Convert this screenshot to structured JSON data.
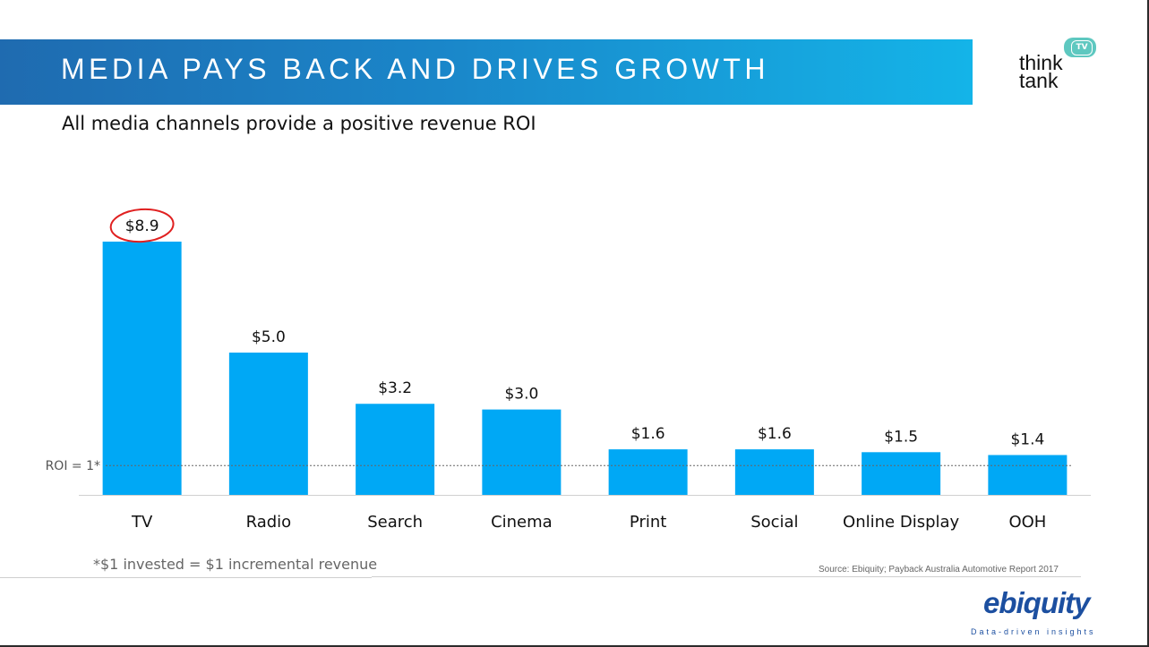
{
  "header": {
    "title": "MEDIA PAYS BACK AND DRIVES GROWTH"
  },
  "logo_thinktv": {
    "line1": "think",
    "line2": "tank",
    "bubble": "TV"
  },
  "chart_data": {
    "type": "bar",
    "title": "All media channels provide a positive revenue ROI",
    "categories": [
      "TV",
      "Radio",
      "Search",
      "Cinema",
      "Print",
      "Social",
      "Online Display",
      "OOH"
    ],
    "values": [
      8.9,
      5.0,
      3.2,
      3.0,
      1.6,
      1.6,
      1.5,
      1.4
    ],
    "value_labels": [
      "$8.9",
      "$5.0",
      "$3.2",
      "$3.0",
      "$1.6",
      "$1.6",
      "$1.5",
      "$1.4"
    ],
    "xlabel": "",
    "ylabel": "",
    "ylim": [
      0,
      8.9
    ],
    "bar_color": "#00a8f5",
    "highlight_index": 0,
    "highlight_color": "#e02020",
    "reference_line": {
      "value": 1,
      "label": "ROI = 1*"
    },
    "grid": false,
    "legend": "none"
  },
  "footnote": "*$1 invested = $1 incremental revenue",
  "source": "Source: Ebiquity; Payback Australia Automotive Report 2017",
  "logo_ebiquity": {
    "name": "ebiquity",
    "tagline": "Data-driven insights"
  }
}
